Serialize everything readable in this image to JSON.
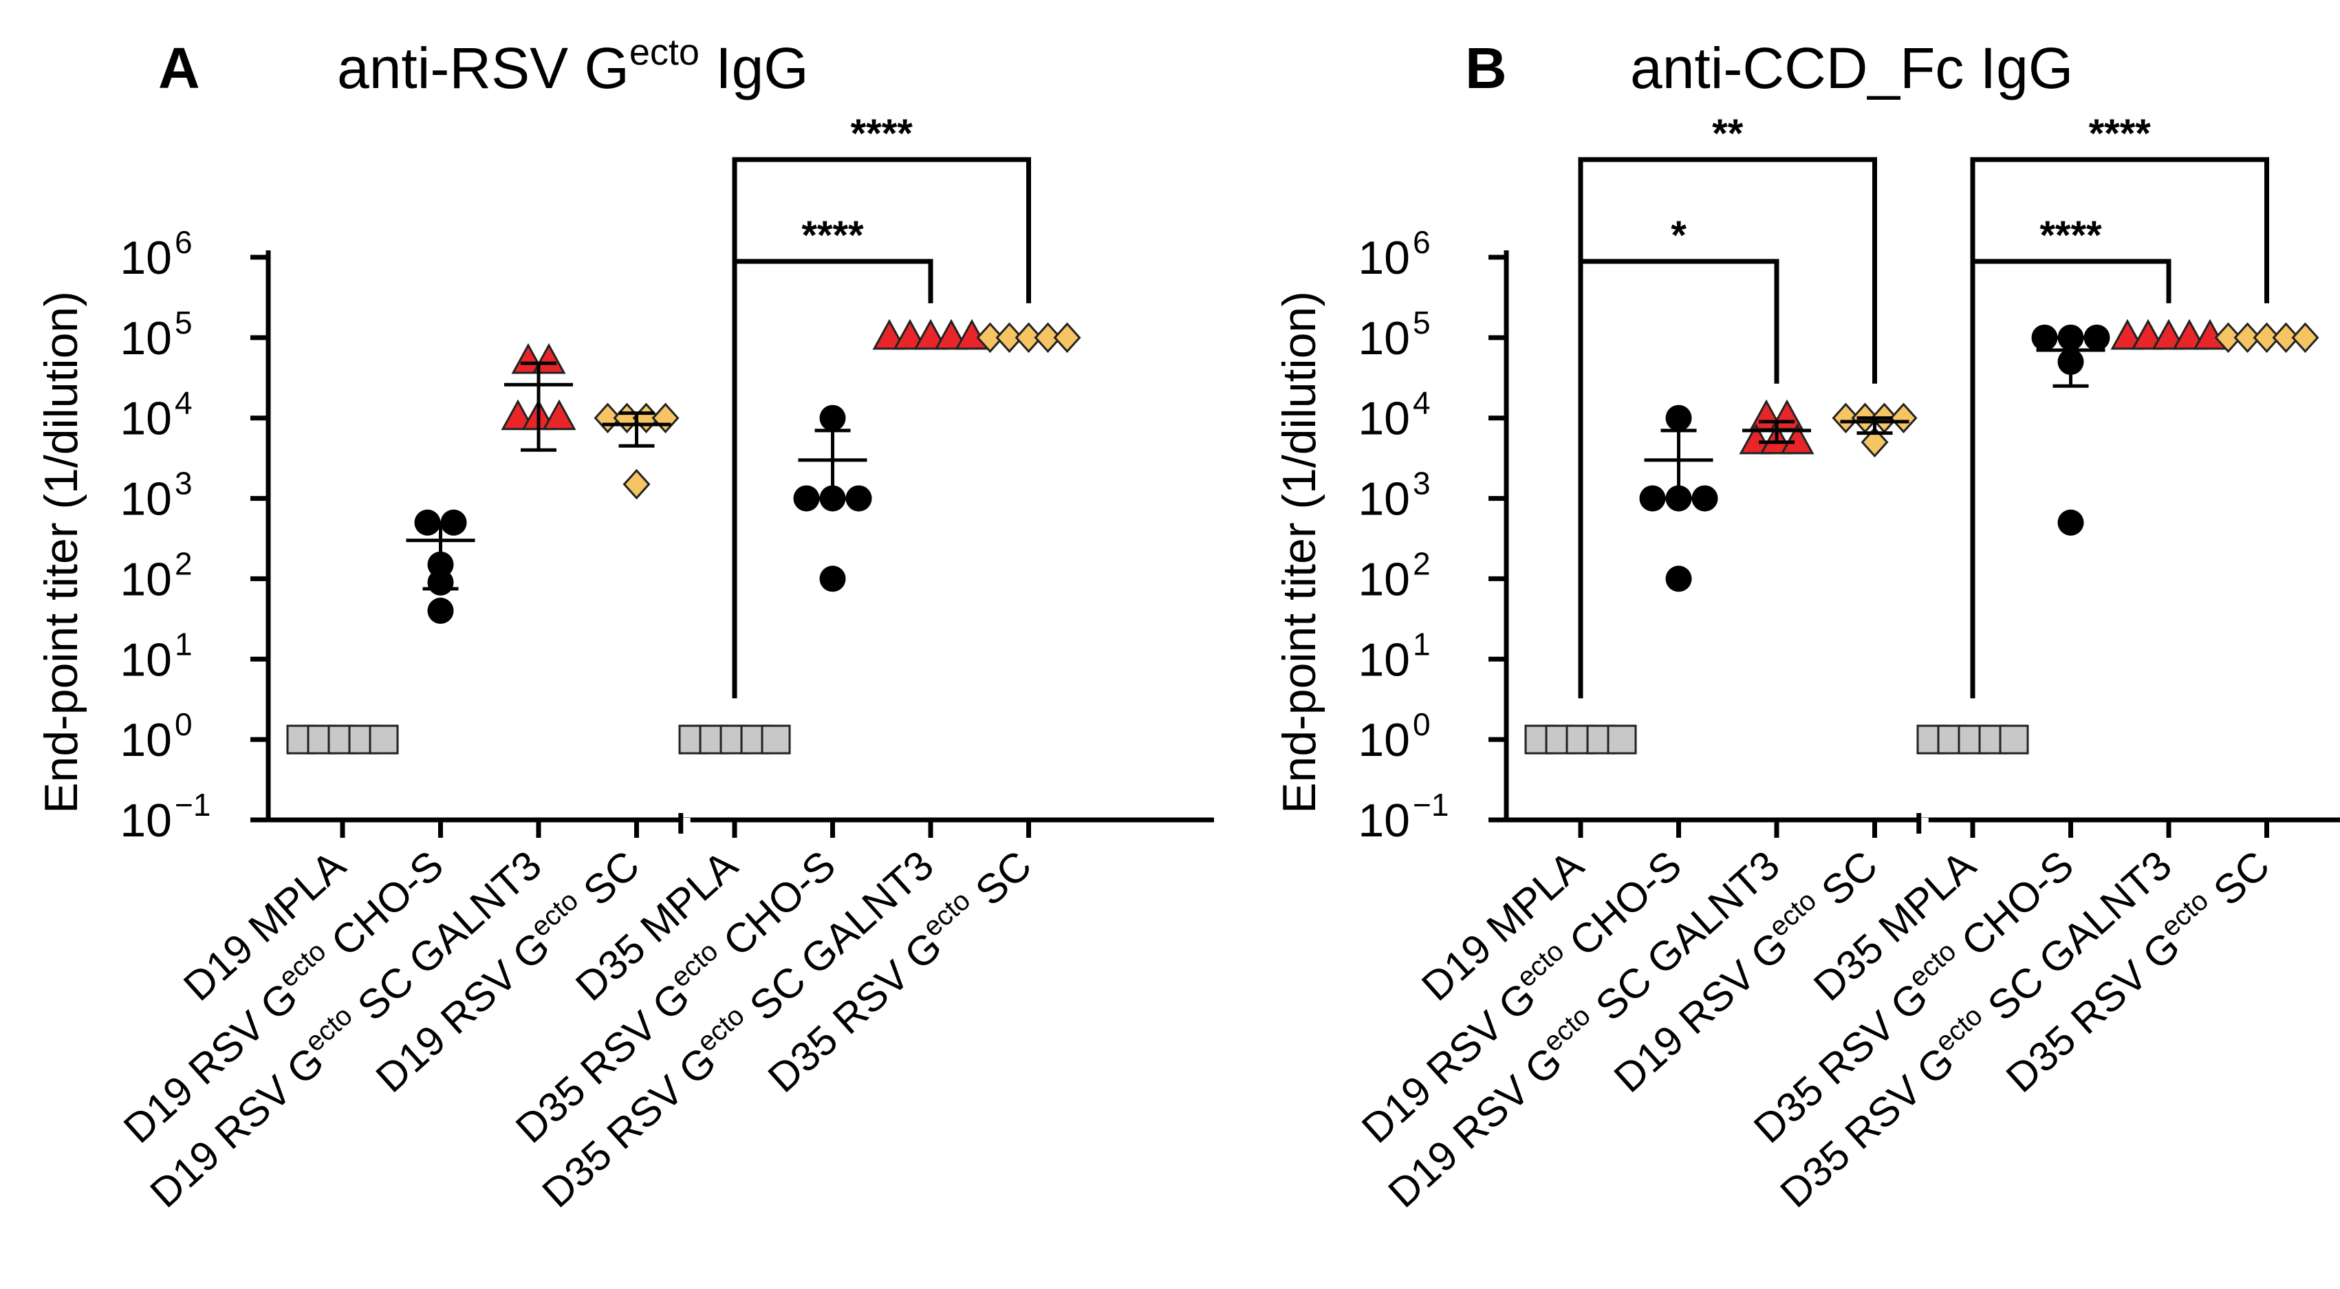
{
  "figure": {
    "panels": [
      "A",
      "B"
    ]
  },
  "colors": {
    "mpla": "#c8c8c8",
    "cho": "#000000",
    "galnt3": "#e8262a",
    "sc": "#f7c463",
    "ink": "#000000"
  },
  "chart_data": [
    {
      "type": "scatter",
      "panel_label": "A",
      "title": "anti-RSV G",
      "title_sup": "ecto",
      "title_suffix": " IgG",
      "ylabel": "End-point titer (1/dilution)",
      "yscale": "log",
      "ylim": [
        0.1,
        1000000
      ],
      "yticks": [
        {
          "base": "10",
          "exp": "6"
        },
        {
          "base": "10",
          "exp": "5"
        },
        {
          "base": "10",
          "exp": "4"
        },
        {
          "base": "10",
          "exp": "3"
        },
        {
          "base": "10",
          "exp": "2"
        },
        {
          "base": "10",
          "exp": "1"
        },
        {
          "base": "10",
          "exp": "0"
        },
        {
          "base": "10",
          "exp": "−1"
        }
      ],
      "categories": [
        {
          "pre": "D19 MPLA",
          "sup": "",
          "post": ""
        },
        {
          "pre": "D19 RSV G",
          "sup": "ecto",
          "post": " CHO-S"
        },
        {
          "pre": "D19 RSV G",
          "sup": "ecto",
          "post": " SC GALNT3"
        },
        {
          "pre": "D19 RSV G",
          "sup": "ecto",
          "post": " SC"
        },
        {
          "pre": "D35 MPLA",
          "sup": "",
          "post": ""
        },
        {
          "pre": "D35 RSV G",
          "sup": "ecto",
          "post": " CHO-S"
        },
        {
          "pre": "D35 RSV G",
          "sup": "ecto",
          "post": " SC GALNT3"
        },
        {
          "pre": "D35 RSV G",
          "sup": "ecto",
          "post": " SC"
        }
      ],
      "groups": [
        {
          "marker": "square",
          "color": "mpla",
          "points": [
            1,
            1,
            1,
            1,
            1
          ],
          "mean": null,
          "err": null
        },
        {
          "marker": "circle",
          "color": "cho",
          "points": [
            500,
            500,
            150,
            90,
            40
          ],
          "mean": 300,
          "err": [
            75,
            500
          ]
        },
        {
          "marker": "triangle",
          "color": "galnt3",
          "points": [
            50000,
            50000,
            10000,
            10000,
            10000
          ],
          "mean": 26000,
          "err": [
            4000,
            48000
          ]
        },
        {
          "marker": "diamond",
          "color": "sc",
          "points": [
            10000,
            10000,
            10000,
            10000,
            1500
          ],
          "mean": 8300,
          "err": [
            4500,
            11500
          ]
        },
        {
          "marker": "square",
          "color": "mpla",
          "points": [
            1,
            1,
            1,
            1,
            1
          ],
          "mean": null,
          "err": null
        },
        {
          "marker": "circle",
          "color": "cho",
          "points": [
            10000,
            1000,
            1000,
            1000,
            100
          ],
          "mean": 3000,
          "err": [
            1000,
            7000
          ]
        },
        {
          "marker": "triangle",
          "color": "galnt3",
          "points": [
            100000,
            100000,
            100000,
            100000,
            100000
          ],
          "mean": null,
          "err": null
        },
        {
          "marker": "diamond",
          "color": "sc",
          "points": [
            100000,
            100000,
            100000,
            100000,
            100000
          ],
          "mean": null,
          "err": null
        }
      ],
      "brackets": [
        {
          "from": 4,
          "to": 6,
          "label": "****",
          "level": 0
        },
        {
          "from": 4,
          "to": 7,
          "label": "****",
          "level": 1
        }
      ]
    },
    {
      "type": "scatter",
      "panel_label": "B",
      "title": "anti-CCD_Fc IgG",
      "title_sup": "",
      "title_suffix": "",
      "ylabel": "End-point titer (1/dilution)",
      "yscale": "log",
      "ylim": [
        0.1,
        1000000
      ],
      "yticks": [
        {
          "base": "10",
          "exp": "6"
        },
        {
          "base": "10",
          "exp": "5"
        },
        {
          "base": "10",
          "exp": "4"
        },
        {
          "base": "10",
          "exp": "3"
        },
        {
          "base": "10",
          "exp": "2"
        },
        {
          "base": "10",
          "exp": "1"
        },
        {
          "base": "10",
          "exp": "0"
        },
        {
          "base": "10",
          "exp": "−1"
        }
      ],
      "categories": [
        {
          "pre": "D19 MPLA",
          "sup": "",
          "post": ""
        },
        {
          "pre": "D19 RSV G",
          "sup": "ecto",
          "post": " CHO-S"
        },
        {
          "pre": "D19 RSV G",
          "sup": "ecto",
          "post": " SC GALNT3"
        },
        {
          "pre": "D19 RSV G",
          "sup": "ecto",
          "post": " SC"
        },
        {
          "pre": "D35 MPLA",
          "sup": "",
          "post": ""
        },
        {
          "pre": "D35 RSV G",
          "sup": "ecto",
          "post": " CHO-S"
        },
        {
          "pre": "D35 RSV G",
          "sup": "ecto",
          "post": " SC GALNT3"
        },
        {
          "pre": "D35 RSV G",
          "sup": "ecto",
          "post": " SC"
        }
      ],
      "groups": [
        {
          "marker": "square",
          "color": "mpla",
          "points": [
            1,
            1,
            1,
            1,
            1
          ],
          "mean": null,
          "err": null
        },
        {
          "marker": "circle",
          "color": "cho",
          "points": [
            10000,
            1000,
            1000,
            1000,
            100
          ],
          "mean": 3000,
          "err": [
            1000,
            7000
          ]
        },
        {
          "marker": "triangle",
          "color": "galnt3",
          "points": [
            10000,
            10000,
            5000,
            5000,
            5000
          ],
          "mean": 7000,
          "err": [
            5000,
            9000
          ]
        },
        {
          "marker": "diamond",
          "color": "sc",
          "points": [
            10000,
            10000,
            10000,
            10000,
            5000
          ],
          "mean": 9000,
          "err": [
            6500,
            10000
          ]
        },
        {
          "marker": "square",
          "color": "mpla",
          "points": [
            1,
            1,
            1,
            1,
            1
          ],
          "mean": null,
          "err": null
        },
        {
          "marker": "circle",
          "color": "cho",
          "points": [
            100000,
            100000,
            100000,
            50000,
            500
          ],
          "mean": 70000,
          "err": [
            25000,
            100000
          ]
        },
        {
          "marker": "triangle",
          "color": "galnt3",
          "points": [
            100000,
            100000,
            100000,
            100000,
            100000
          ],
          "mean": null,
          "err": null
        },
        {
          "marker": "diamond",
          "color": "sc",
          "points": [
            100000,
            100000,
            100000,
            100000,
            100000
          ],
          "mean": null,
          "err": null
        }
      ],
      "brackets": [
        {
          "from": 0,
          "to": 2,
          "label": "*",
          "level": 0
        },
        {
          "from": 0,
          "to": 3,
          "label": "**",
          "level": 1
        },
        {
          "from": 4,
          "to": 6,
          "label": "****",
          "level": 0
        },
        {
          "from": 4,
          "to": 7,
          "label": "****",
          "level": 1
        }
      ]
    }
  ]
}
